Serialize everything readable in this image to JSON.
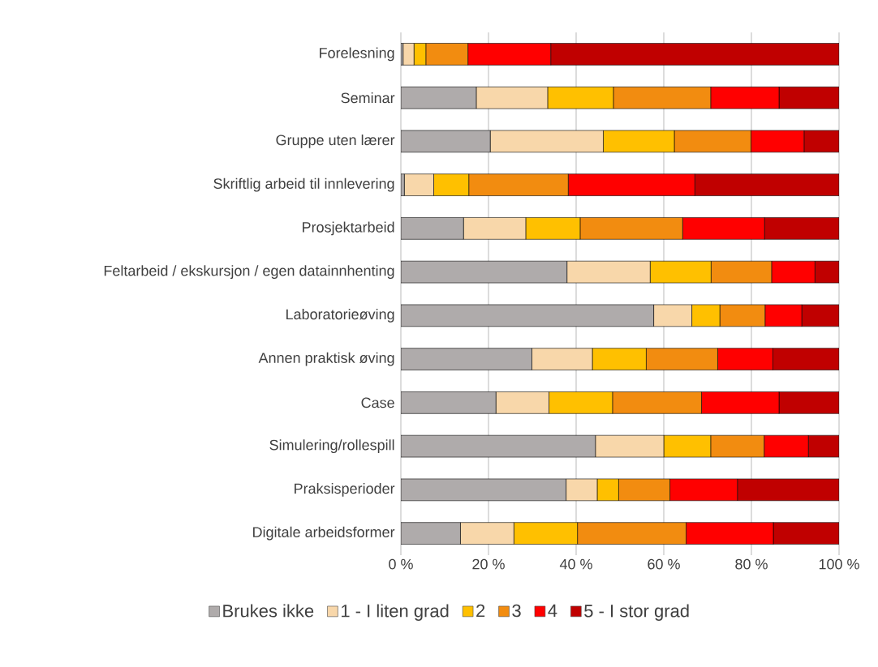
{
  "chart_data": {
    "type": "bar",
    "orientation": "horizontal",
    "stacked": true,
    "categories": [
      "Forelesning",
      "Seminar",
      "Gruppe uten lærer",
      "Skriftlig arbeid til innlevering",
      "Prosjektarbeid",
      "Feltarbeid / ekskursjon / egen datainnhenting",
      "Laboratorieøving",
      "Annen praktisk øving",
      "Case",
      "Simulering/rollespill",
      "Praksisperioder",
      "Digitale arbeidsformer"
    ],
    "series": [
      {
        "name": "Brukes ikke",
        "color": "#afabab",
        "values": [
          0.5,
          17.2,
          20.4,
          0.8,
          14.3,
          37.9,
          57.7,
          29.9,
          21.7,
          44.4,
          37.7,
          13.6
        ]
      },
      {
        "name": "1 - I liten grad",
        "color": "#f8d7aa",
        "values": [
          2.5,
          16.3,
          25.8,
          6.7,
          14.2,
          19.0,
          8.7,
          13.8,
          12.1,
          15.6,
          7.1,
          12.2
        ]
      },
      {
        "name": "2",
        "color": "#ffc000",
        "values": [
          2.7,
          15.0,
          16.2,
          8.0,
          12.4,
          13.9,
          6.4,
          12.3,
          14.5,
          10.7,
          4.9,
          14.5
        ]
      },
      {
        "name": "3",
        "color": "#f28c10",
        "values": [
          9.6,
          22.2,
          17.5,
          22.7,
          23.4,
          13.8,
          10.3,
          16.3,
          20.3,
          12.2,
          11.7,
          24.8
        ]
      },
      {
        "name": "4",
        "color": "#ff0000",
        "values": [
          18.9,
          15.6,
          12.1,
          28.9,
          18.7,
          9.9,
          8.4,
          12.6,
          17.7,
          10.1,
          15.4,
          19.9
        ]
      },
      {
        "name": "5 - I stor grad",
        "color": "#c00000",
        "values": [
          65.8,
          13.7,
          8.0,
          32.9,
          17.0,
          5.5,
          8.5,
          15.1,
          13.7,
          7.0,
          23.2,
          15.0
        ]
      }
    ],
    "xlim": [
      0,
      100
    ],
    "xticks": [
      {
        "value": 0,
        "label": "0 %"
      },
      {
        "value": 20,
        "label": "20 %"
      },
      {
        "value": 40,
        "label": "40 %"
      },
      {
        "value": 60,
        "label": "60 %"
      },
      {
        "value": 80,
        "label": "80 %"
      },
      {
        "value": 100,
        "label": "100 %"
      }
    ],
    "grid": "x",
    "legend": "bottom"
  }
}
